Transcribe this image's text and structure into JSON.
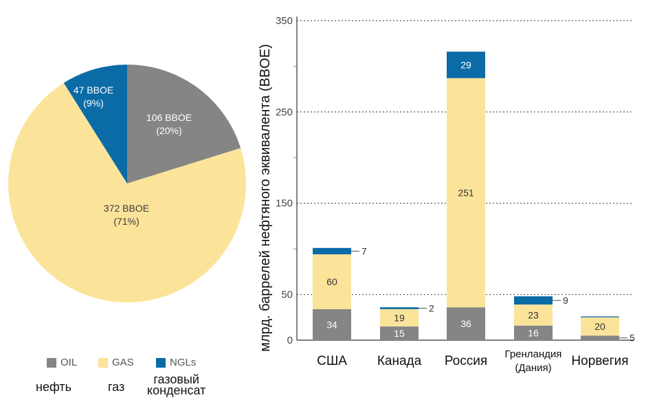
{
  "chart_data": [
    {
      "type": "pie",
      "slices": [
        {
          "label": "OIL",
          "value": 106,
          "unit": "BBOE",
          "percent": "20%",
          "color": "#858585"
        },
        {
          "label": "GAS",
          "value": 372,
          "unit": "BBOE",
          "percent": "71%",
          "color": "#fbe49a"
        },
        {
          "label": "NGLs",
          "value": 47,
          "unit": "BBOE",
          "percent": "9%",
          "color": "#0b6ba7"
        }
      ],
      "slice_labels": [
        "106 BBOE",
        "(20%)",
        "372 BBOE",
        "(71%)",
        "47 BBOE",
        "(9%)"
      ],
      "legend": [
        {
          "code": "OIL",
          "ru": "нефть",
          "color": "#858585"
        },
        {
          "code": "GAS",
          "ru": "газ",
          "color": "#fbe49a"
        },
        {
          "code": "NGLs",
          "ru_lines": [
            "газовый",
            "конденсат"
          ],
          "color": "#0b6ba7"
        }
      ]
    },
    {
      "type": "bar",
      "stacked": true,
      "categories": [
        "США",
        "Канада",
        "Россия",
        "Гренландия (Дания)",
        "Норвегия"
      ],
      "category_lines": [
        [
          "США"
        ],
        [
          "Канада"
        ],
        [
          "Россия"
        ],
        [
          "Гренландия",
          "(Дания)"
        ],
        [
          "Норвегия"
        ]
      ],
      "series": [
        {
          "name": "OIL",
          "color": "#858585",
          "values": [
            34,
            15,
            36,
            16,
            5
          ]
        },
        {
          "name": "GAS",
          "color": "#fbe49a",
          "values": [
            60,
            19,
            251,
            23,
            20
          ]
        },
        {
          "name": "NGLs",
          "color": "#0b6ba7",
          "values": [
            7,
            2,
            29,
            9,
            1
          ]
        }
      ],
      "data_labels": [
        [
          "34",
          "60",
          "7"
        ],
        [
          "15",
          "19",
          "2"
        ],
        [
          "36",
          "251",
          "29"
        ],
        [
          "16",
          "23",
          "9"
        ],
        [
          "5",
          "20",
          ""
        ]
      ],
      "ylabel": "млрд. баррелей нефтяного эквивалента (BBOE)",
      "ylim": [
        0,
        350
      ],
      "yticks_labeled": [
        "0",
        "50",
        "150",
        "250",
        "350"
      ],
      "yticks_labeled_values": [
        0,
        50,
        150,
        250,
        350
      ],
      "yticks_minor_values": [
        100,
        200,
        300
      ],
      "grid": "dotted horizontal"
    }
  ]
}
